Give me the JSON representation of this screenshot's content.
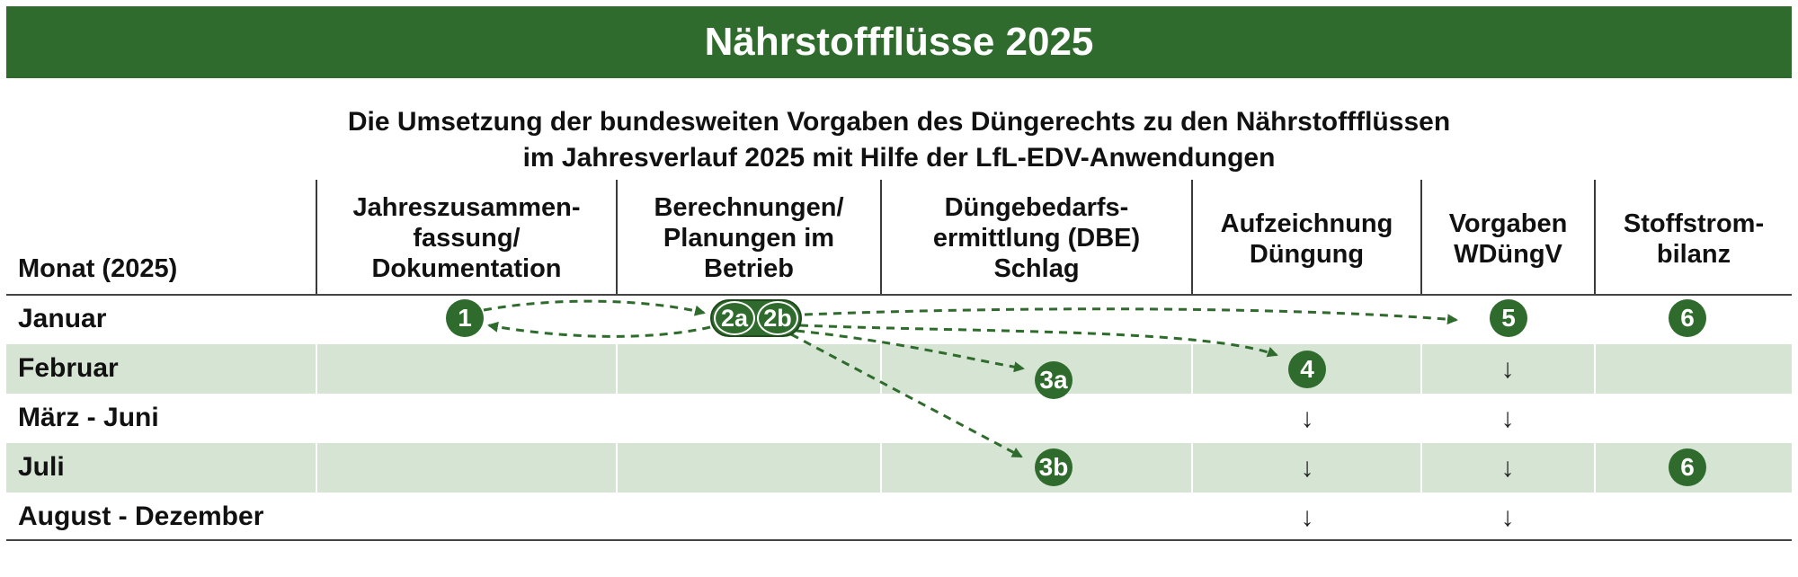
{
  "title": "Nährstoffflüsse 2025",
  "subtitle": {
    "line1": "Die Umsetzung der bundesweiten Vorgaben des Düngerechts zu den Nährstoffflüssen",
    "line2": "im Jahresverlauf 2025 mit Hilfe der LfL-EDV-Anwendungen"
  },
  "colors": {
    "brand_green": "#2f6b2c",
    "row_band": "#d6e4d4"
  },
  "columns": {
    "month": "Monat (2025)",
    "col1": [
      "Jahreszusammen-",
      "fassung/",
      "Dokumentation"
    ],
    "col2": [
      "Berechnungen/",
      "Planungen im",
      "Betrieb"
    ],
    "col3": [
      "Düngebedarfs-",
      "ermittlung (DBE)",
      "Schlag"
    ],
    "col4": [
      "Aufzeichnung",
      "Düngung"
    ],
    "col5": [
      "Vorgaben",
      "WDüngV"
    ],
    "col6": [
      "Stoffstrom-",
      "bilanz"
    ]
  },
  "rows": [
    "Januar",
    "Februar",
    "März - Juni",
    "Juli",
    "August - Dezember"
  ],
  "badges": {
    "b1": "1",
    "b2a": "2a",
    "b2b": "2b",
    "b3a": "3a",
    "b3b": "3b",
    "b4": "4",
    "b5": "5",
    "b6_jan": "6",
    "b6_jul": "6"
  },
  "arrow_symbol": "↓"
}
